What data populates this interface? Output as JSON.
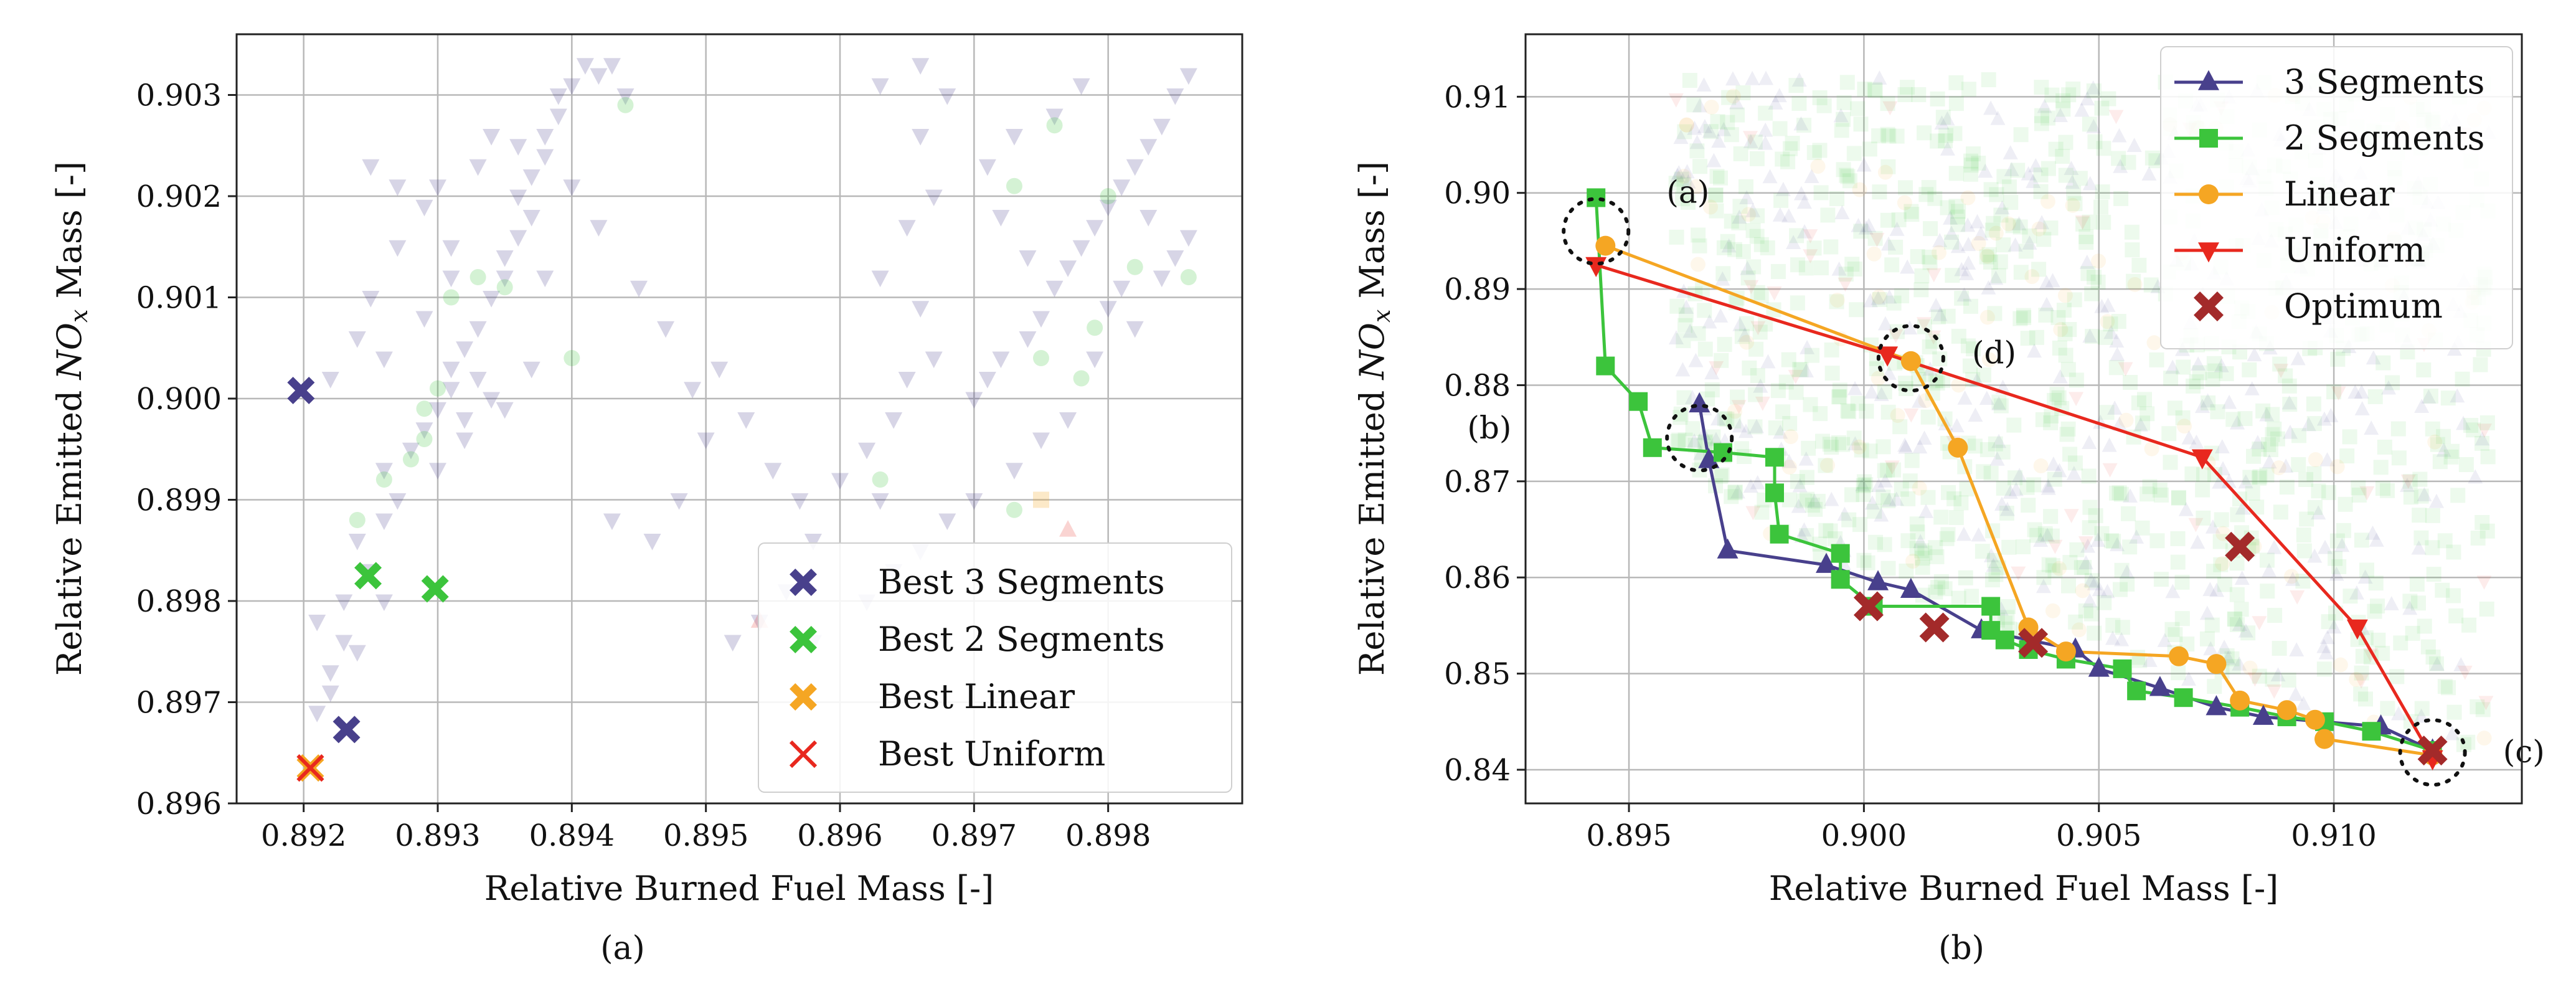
{
  "chart_data": [
    {
      "panel": "a",
      "type": "scatter",
      "caption": "(a)",
      "xlabel": "Relative Burned Fuel Mass [-]",
      "ylabel_prefix": "Relative Emitted ",
      "ylabel_var": "NO",
      "ylabel_sub": "x",
      "ylabel_suffix": " Mass [-]",
      "xlim": [
        0.8915,
        0.899
      ],
      "ylim": [
        0.896,
        0.9036
      ],
      "xticks": [
        "0.892",
        "0.893",
        "0.894",
        "0.895",
        "0.896",
        "0.897",
        "0.898"
      ],
      "xtick_values": [
        0.892,
        0.893,
        0.894,
        0.895,
        0.896,
        0.897,
        0.898
      ],
      "yticks": [
        "0.896",
        "0.897",
        "0.898",
        "0.899",
        "0.900",
        "0.901",
        "0.902",
        "0.903"
      ],
      "ytick_values": [
        0.896,
        0.897,
        0.898,
        0.899,
        0.9,
        0.901,
        0.902,
        0.903
      ],
      "grid": true,
      "legend_position": "lower-right",
      "background": {
        "name": "3 Segments samples",
        "color": "#48408c",
        "points": [
          [
            0.8921,
            0.8969
          ],
          [
            0.8922,
            0.8973
          ],
          [
            0.8923,
            0.8976
          ],
          [
            0.8921,
            0.8978
          ],
          [
            0.8923,
            0.898
          ],
          [
            0.8925,
            0.8983
          ],
          [
            0.8924,
            0.8986
          ],
          [
            0.8926,
            0.8988
          ],
          [
            0.8927,
            0.899
          ],
          [
            0.8926,
            0.8993
          ],
          [
            0.8928,
            0.8995
          ],
          [
            0.8929,
            0.8997
          ],
          [
            0.893,
            0.8999
          ],
          [
            0.8931,
            0.9001
          ],
          [
            0.8931,
            0.9003
          ],
          [
            0.8932,
            0.9005
          ],
          [
            0.8933,
            0.9002
          ],
          [
            0.8934,
            0.9
          ],
          [
            0.8932,
            0.8998
          ],
          [
            0.8933,
            0.9007
          ],
          [
            0.8934,
            0.901
          ],
          [
            0.8935,
            0.9012
          ],
          [
            0.8935,
            0.9014
          ],
          [
            0.8936,
            0.9016
          ],
          [
            0.8937,
            0.9018
          ],
          [
            0.8936,
            0.902
          ],
          [
            0.8937,
            0.9022
          ],
          [
            0.8938,
            0.9024
          ],
          [
            0.8938,
            0.9026
          ],
          [
            0.8939,
            0.9028
          ],
          [
            0.8939,
            0.903
          ],
          [
            0.894,
            0.9031
          ],
          [
            0.8941,
            0.9033
          ],
          [
            0.8942,
            0.9032
          ],
          [
            0.8943,
            0.9033
          ],
          [
            0.8944,
            0.903
          ],
          [
            0.8936,
            0.9025
          ],
          [
            0.8933,
            0.9023
          ],
          [
            0.893,
            0.9021
          ],
          [
            0.8929,
            0.9019
          ],
          [
            0.8927,
            0.9015
          ],
          [
            0.8925,
            0.901
          ],
          [
            0.8924,
            0.9006
          ],
          [
            0.8922,
            0.9002
          ],
          [
            0.8934,
            0.9026
          ],
          [
            0.894,
            0.9021
          ],
          [
            0.8942,
            0.9017
          ],
          [
            0.8938,
            0.9012
          ],
          [
            0.8945,
            0.9011
          ],
          [
            0.8947,
            0.9007
          ],
          [
            0.8949,
            0.9001
          ],
          [
            0.8951,
            0.9003
          ],
          [
            0.895,
            0.8996
          ],
          [
            0.8953,
            0.8998
          ],
          [
            0.8955,
            0.8993
          ],
          [
            0.8957,
            0.899
          ],
          [
            0.8958,
            0.8986
          ],
          [
            0.896,
            0.8992
          ],
          [
            0.8962,
            0.8995
          ],
          [
            0.8963,
            0.899
          ],
          [
            0.8964,
            0.8998
          ],
          [
            0.8965,
            0.9002
          ],
          [
            0.8967,
            0.9004
          ],
          [
            0.8966,
            0.9009
          ],
          [
            0.8963,
            0.9012
          ],
          [
            0.8965,
            0.9017
          ],
          [
            0.8967,
            0.902
          ],
          [
            0.8966,
            0.9026
          ],
          [
            0.8968,
            0.903
          ],
          [
            0.8966,
            0.9033
          ],
          [
            0.8963,
            0.9031
          ],
          [
            0.897,
            0.9
          ],
          [
            0.8971,
            0.9002
          ],
          [
            0.8972,
            0.9004
          ],
          [
            0.8974,
            0.9006
          ],
          [
            0.8975,
            0.9008
          ],
          [
            0.8976,
            0.9011
          ],
          [
            0.8977,
            0.9013
          ],
          [
            0.8978,
            0.9015
          ],
          [
            0.8979,
            0.9017
          ],
          [
            0.898,
            0.9019
          ],
          [
            0.8981,
            0.9021
          ],
          [
            0.8982,
            0.9023
          ],
          [
            0.8983,
            0.9025
          ],
          [
            0.8984,
            0.9027
          ],
          [
            0.8985,
            0.903
          ],
          [
            0.8986,
            0.9032
          ],
          [
            0.8978,
            0.9031
          ],
          [
            0.8976,
            0.9028
          ],
          [
            0.8973,
            0.9026
          ],
          [
            0.8971,
            0.9023
          ],
          [
            0.8972,
            0.9018
          ],
          [
            0.8974,
            0.9014
          ],
          [
            0.898,
            0.9009
          ],
          [
            0.8982,
            0.9007
          ],
          [
            0.8984,
            0.9012
          ],
          [
            0.8986,
            0.9016
          ],
          [
            0.8985,
            0.9014
          ],
          [
            0.8983,
            0.9018
          ],
          [
            0.8981,
            0.9011
          ],
          [
            0.8979,
            0.9004
          ],
          [
            0.8977,
            0.8998
          ],
          [
            0.8975,
            0.8996
          ],
          [
            0.8973,
            0.8993
          ],
          [
            0.897,
            0.899
          ],
          [
            0.8968,
            0.8988
          ],
          [
            0.8966,
            0.8985
          ],
          [
            0.8964,
            0.8983
          ],
          [
            0.8962,
            0.898
          ],
          [
            0.8956,
            0.8981
          ],
          [
            0.8954,
            0.8978
          ],
          [
            0.8952,
            0.8976
          ],
          [
            0.8958,
            0.8976
          ],
          [
            0.8946,
            0.8986
          ],
          [
            0.8943,
            0.8988
          ],
          [
            0.8948,
            0.899
          ],
          [
            0.8926,
            0.9004
          ],
          [
            0.8929,
            0.9008
          ],
          [
            0.8931,
            0.9012
          ],
          [
            0.8927,
            0.9021
          ],
          [
            0.8925,
            0.9023
          ],
          [
            0.8931,
            0.9015
          ],
          [
            0.8937,
            0.9003
          ],
          [
            0.8935,
            0.8999
          ],
          [
            0.8932,
            0.8996
          ],
          [
            0.893,
            0.8993
          ],
          [
            0.8926,
            0.898
          ],
          [
            0.8924,
            0.8975
          ],
          [
            0.8922,
            0.8971
          ]
        ]
      },
      "background2": {
        "name": "2 Segments samples",
        "color": "#3cc43c",
        "points": [
          [
            0.8924,
            0.8988
          ],
          [
            0.8926,
            0.8992
          ],
          [
            0.8928,
            0.8994
          ],
          [
            0.8929,
            0.8996
          ],
          [
            0.8929,
            0.8999
          ],
          [
            0.893,
            0.9001
          ],
          [
            0.8931,
            0.901
          ],
          [
            0.8933,
            0.9012
          ],
          [
            0.8935,
            0.9011
          ],
          [
            0.894,
            0.9004
          ],
          [
            0.8944,
            0.9029
          ],
          [
            0.8973,
            0.9021
          ],
          [
            0.8976,
            0.9027
          ],
          [
            0.898,
            0.902
          ],
          [
            0.8982,
            0.9013
          ],
          [
            0.8979,
            0.9007
          ],
          [
            0.8975,
            0.9004
          ],
          [
            0.8978,
            0.9002
          ],
          [
            0.8973,
            0.8989
          ],
          [
            0.8963,
            0.8992
          ],
          [
            0.8986,
            0.9012
          ]
        ]
      },
      "background3": {
        "name": "Linear samples",
        "color": "#f5a623",
        "points": [
          [
            0.8975,
            0.899
          ]
        ]
      },
      "background4": {
        "name": "Uniform samples",
        "color": "#e8281e",
        "points": [
          [
            0.8977,
            0.8987
          ],
          [
            0.8954,
            0.8978
          ]
        ]
      },
      "series": [
        {
          "name": "Best 3 Segments",
          "marker": "X",
          "color": "#48408c",
          "points": [
            [
              0.89198,
              0.90008
            ],
            [
              0.89232,
              0.89673
            ]
          ]
        },
        {
          "name": "Best 2 Segments",
          "marker": "X",
          "color": "#3cc43c",
          "points": [
            [
              0.89248,
              0.89825
            ],
            [
              0.89298,
              0.89812
            ]
          ]
        },
        {
          "name": "Best Linear",
          "marker": "X",
          "color": "#f5a623",
          "points": [
            [
              0.89205,
              0.89635
            ]
          ]
        },
        {
          "name": "Best Uniform",
          "marker": "x",
          "color": "#e8281e",
          "points": [
            [
              0.89205,
              0.89635
            ]
          ]
        }
      ]
    },
    {
      "panel": "b",
      "type": "line",
      "caption": "(b)",
      "xlabel": "Relative Burned Fuel Mass [-]",
      "ylabel_prefix": "Relative Emitted ",
      "ylabel_var": "NO",
      "ylabel_sub": "x",
      "ylabel_suffix": " Mass [-]",
      "xlim": [
        0.8928,
        0.914
      ],
      "ylim": [
        0.8365,
        0.9165
      ],
      "xticks": [
        "0.895",
        "0.900",
        "0.905",
        "0.910"
      ],
      "xtick_values": [
        0.895,
        0.9,
        0.905,
        0.91
      ],
      "yticks": [
        "0.84",
        "0.85",
        "0.86",
        "0.87",
        "0.88",
        "0.89",
        "0.90",
        "0.91"
      ],
      "ytick_values": [
        0.84,
        0.85,
        0.86,
        0.87,
        0.88,
        0.89,
        0.9,
        0.91
      ],
      "grid": true,
      "legend_position": "top-right",
      "cloud": {
        "description": "dense translucent background samples of all methods",
        "x_range": [
          0.896,
          0.9133
        ],
        "y_range": [
          0.842,
          0.912
        ],
        "count": 1400
      },
      "series": [
        {
          "name": "3 Segments",
          "marker": "triangle-up",
          "color": "#48408c",
          "points": [
            [
              0.8965,
              0.878
            ],
            [
              0.8967,
              0.8722
            ],
            [
              0.8971,
              0.8628
            ],
            [
              0.8992,
              0.8613
            ],
            [
              0.9003,
              0.8595
            ],
            [
              0.901,
              0.8587
            ],
            [
              0.9025,
              0.8545
            ],
            [
              0.9045,
              0.8525
            ],
            [
              0.905,
              0.8505
            ],
            [
              0.9063,
              0.8485
            ],
            [
              0.9075,
              0.8465
            ],
            [
              0.9085,
              0.8455
            ],
            [
              0.911,
              0.8445
            ],
            [
              0.9121,
              0.842
            ]
          ]
        },
        {
          "name": "2 Segments",
          "marker": "square",
          "color": "#3cc43c",
          "points": [
            [
              0.8943,
              0.8995
            ],
            [
              0.8945,
              0.882
            ],
            [
              0.8952,
              0.8783
            ],
            [
              0.8955,
              0.8735
            ],
            [
              0.897,
              0.873
            ],
            [
              0.8981,
              0.8725
            ],
            [
              0.8981,
              0.8688
            ],
            [
              0.8982,
              0.8645
            ],
            [
              0.8995,
              0.8625
            ],
            [
              0.8995,
              0.8598
            ],
            [
              0.9002,
              0.857
            ],
            [
              0.9027,
              0.857
            ],
            [
              0.9027,
              0.8545
            ],
            [
              0.903,
              0.8535
            ],
            [
              0.9035,
              0.8525
            ],
            [
              0.9043,
              0.8515
            ],
            [
              0.9055,
              0.8505
            ],
            [
              0.9058,
              0.8482
            ],
            [
              0.9068,
              0.8475
            ],
            [
              0.908,
              0.8465
            ],
            [
              0.909,
              0.8455
            ],
            [
              0.9098,
              0.845
            ],
            [
              0.9108,
              0.844
            ],
            [
              0.9121,
              0.842
            ]
          ]
        },
        {
          "name": "Linear",
          "marker": "circle",
          "color": "#f5a623",
          "points": [
            [
              0.8945,
              0.8945
            ],
            [
              0.901,
              0.8825
            ],
            [
              0.902,
              0.8735
            ],
            [
              0.9035,
              0.8548
            ],
            [
              0.9043,
              0.8523
            ],
            [
              0.9067,
              0.8518
            ],
            [
              0.9075,
              0.851
            ],
            [
              0.908,
              0.8472
            ],
            [
              0.909,
              0.8462
            ],
            [
              0.9096,
              0.8452
            ],
            [
              0.9098,
              0.8432
            ],
            [
              0.9121,
              0.8415
            ]
          ]
        },
        {
          "name": "Uniform",
          "marker": "triangle-down",
          "color": "#e8281e",
          "points": [
            [
              0.8943,
              0.8925
            ],
            [
              0.9005,
              0.8832
            ],
            [
              0.9072,
              0.8725
            ],
            [
              0.9105,
              0.8548
            ],
            [
              0.9121,
              0.8412
            ]
          ]
        },
        {
          "name": "Optimum",
          "marker": "X",
          "color": "#a32a2a",
          "line": false,
          "points": [
            [
              0.9001,
              0.857
            ],
            [
              0.9015,
              0.8548
            ],
            [
              0.9036,
              0.8532
            ],
            [
              0.908,
              0.8632
            ],
            [
              0.9121,
              0.842
            ]
          ]
        }
      ],
      "annotations": [
        {
          "label": "(a)",
          "x": 0.8943,
          "y": 0.896,
          "label_dx": 0.0015,
          "label_dy": 0.004
        },
        {
          "label": "(d)",
          "x": 0.901,
          "y": 0.8828,
          "label_dx": 0.0013,
          "label_dy": 0.0005
        },
        {
          "label": "(b)",
          "x": 0.8965,
          "y": 0.8745,
          "label_dx": -0.004,
          "label_dy": 0.001
        },
        {
          "label": "(c)",
          "x": 0.9121,
          "y": 0.8418,
          "label_dx": 0.0015,
          "label_dy": 0.0
        }
      ]
    }
  ]
}
